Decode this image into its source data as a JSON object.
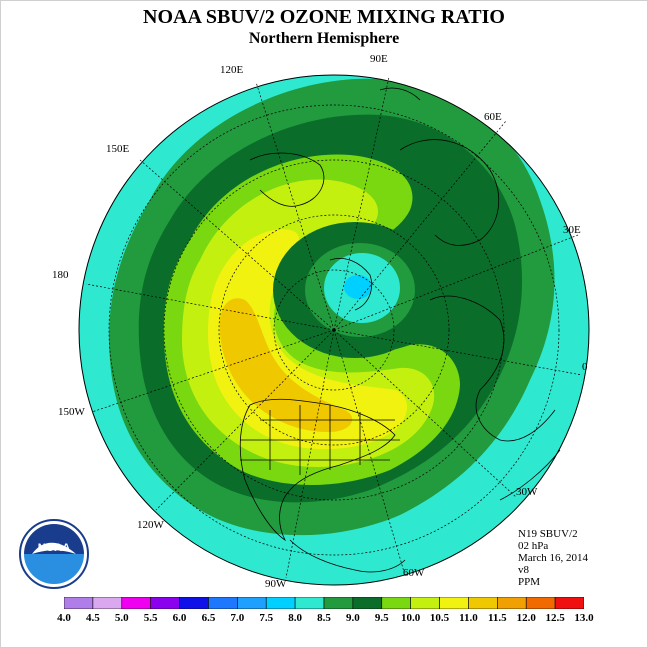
{
  "title": "NOAA SBUV/2 OZONE MIXING RATIO",
  "subtitle": "Northern Hemisphere",
  "info": {
    "satellite": "N19 SBUV/2",
    "pressure": "02 hPa",
    "date": "March 16, 2014",
    "version": "v8",
    "units": "PPM"
  },
  "logo": {
    "text": "NOAA",
    "ring_text": "NATIONAL OCEANIC AND ATMOSPHERIC ADMINISTRATION",
    "ring_text_bottom": "U.S. DEPARTMENT OF COMMERCE"
  },
  "longitude_labels": [
    "90E",
    "60E",
    "30E",
    "0",
    "30W",
    "60W",
    "90W",
    "120W",
    "150W",
    "180",
    "150E",
    "120E"
  ],
  "colorbar": {
    "ticks": [
      "4.0",
      "4.5",
      "5.0",
      "5.5",
      "6.0",
      "6.5",
      "7.0",
      "7.5",
      "8.0",
      "8.5",
      "9.0",
      "9.5",
      "10.0",
      "10.5",
      "11.0",
      "11.5",
      "12.0",
      "12.5",
      "13.0"
    ],
    "colors": [
      "#b07ee8",
      "#d9a8ee",
      "#f000f0",
      "#8c00f0",
      "#1010e8",
      "#1e78ff",
      "#1ea0ff",
      "#00d0ff",
      "#2ee8d0",
      "#229a3e",
      "#0a6e2a",
      "#7ad810",
      "#c4f010",
      "#f2f210",
      "#f0c800",
      "#f0a000",
      "#f06a00",
      "#f01010",
      "#906040"
    ]
  },
  "map_colors": {
    "level_7_5": "#00d0ff",
    "level_8_0": "#2ee8d0",
    "level_8_5": "#229a3e",
    "level_9_0": "#0a6e2a",
    "level_9_5": "#7ad810",
    "level_10_0": "#c4f010",
    "level_10_5": "#f2f210",
    "level_11_0": "#f0c800",
    "level_11_5": "#f0a000"
  }
}
